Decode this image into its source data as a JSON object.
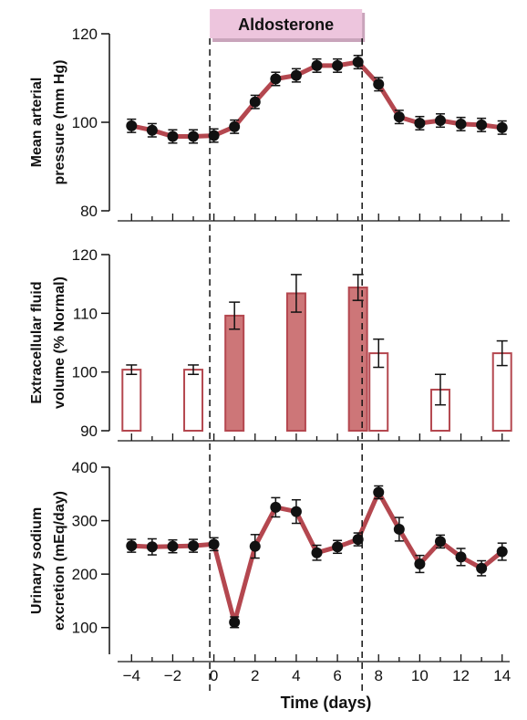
{
  "banner": {
    "label": "Aldosterone",
    "start_day": -0.2,
    "end_day": 7.2,
    "color": "#edc5dd"
  },
  "colors": {
    "line": "#b4474f",
    "bar_fill": "#cd7678",
    "bar_edge": "#b4474f",
    "marker": "#111111"
  },
  "chart_data": [
    {
      "type": "line",
      "ylabel_lines": [
        "Mean arterial",
        "pressure  (mm Hg)"
      ],
      "ylim": [
        80,
        120
      ],
      "yticks": [
        80,
        100,
        120
      ],
      "xlim": [
        -4.5,
        14.5
      ],
      "x": [
        -4,
        -3,
        -2,
        -1,
        0,
        1,
        2,
        3,
        4,
        5,
        6,
        7,
        8,
        9,
        10,
        11,
        12,
        13,
        14
      ],
      "series": [
        {
          "values": [
            99.2,
            98.2,
            96.8,
            96.8,
            97.0,
            99.0,
            104.6,
            109.8,
            110.6,
            112.8,
            112.8,
            113.6,
            108.6,
            101.2,
            99.8,
            100.4,
            99.6,
            99.4,
            98.8
          ],
          "error": [
            1.5,
            1.5,
            1.5,
            1.5,
            1.5,
            1.5,
            1.5,
            1.5,
            1.5,
            1.5,
            1.5,
            1.5,
            1.5,
            1.5,
            1.5,
            1.5,
            1.5,
            1.5,
            1.5
          ]
        }
      ]
    },
    {
      "type": "bar",
      "ylabel_lines": [
        "Extracellular fluid",
        "volume  (% Normal)"
      ],
      "ylim": [
        90,
        120
      ],
      "yticks": [
        90,
        100,
        110,
        120
      ],
      "xlim": [
        -4.5,
        14.5
      ],
      "x": [
        -4,
        -1,
        1,
        4,
        7,
        8,
        11,
        14
      ],
      "values": [
        100.4,
        100.4,
        109.6,
        113.4,
        114.4,
        103.2,
        97.0,
        103.2
      ],
      "error": [
        0.8,
        0.8,
        2.3,
        3.2,
        2.2,
        2.4,
        2.6,
        2.1
      ],
      "filled": [
        false,
        false,
        true,
        true,
        true,
        false,
        false,
        false
      ]
    },
    {
      "type": "line",
      "ylabel_lines": [
        "Urinary sodium",
        "excretion  (mEq/day)"
      ],
      "ylim": [
        50,
        400
      ],
      "yticks": [
        100,
        200,
        300,
        400
      ],
      "xlim": [
        -4.5,
        14.5
      ],
      "xticks": [
        -4,
        -2,
        0,
        2,
        4,
        6,
        8,
        10,
        12,
        14
      ],
      "xtick_labels": [
        "−4",
        "−2",
        "0",
        "2",
        "4",
        "6",
        "8",
        "10",
        "12",
        "14"
      ],
      "xlabel": "Time (days)",
      "x": [
        -4,
        -3,
        -2,
        -1,
        0,
        1,
        2,
        3,
        4,
        5,
        6,
        7,
        8,
        9,
        10,
        11,
        12,
        13,
        14
      ],
      "series": [
        {
          "values": [
            253,
            251,
            252,
            253,
            256,
            110,
            252,
            325,
            317,
            240,
            251,
            265,
            353,
            284,
            219,
            261,
            232,
            211,
            242
          ],
          "error": [
            12,
            15,
            12,
            12,
            12,
            10,
            22,
            18,
            22,
            14,
            12,
            12,
            12,
            22,
            16,
            12,
            16,
            14,
            16
          ]
        }
      ]
    }
  ]
}
